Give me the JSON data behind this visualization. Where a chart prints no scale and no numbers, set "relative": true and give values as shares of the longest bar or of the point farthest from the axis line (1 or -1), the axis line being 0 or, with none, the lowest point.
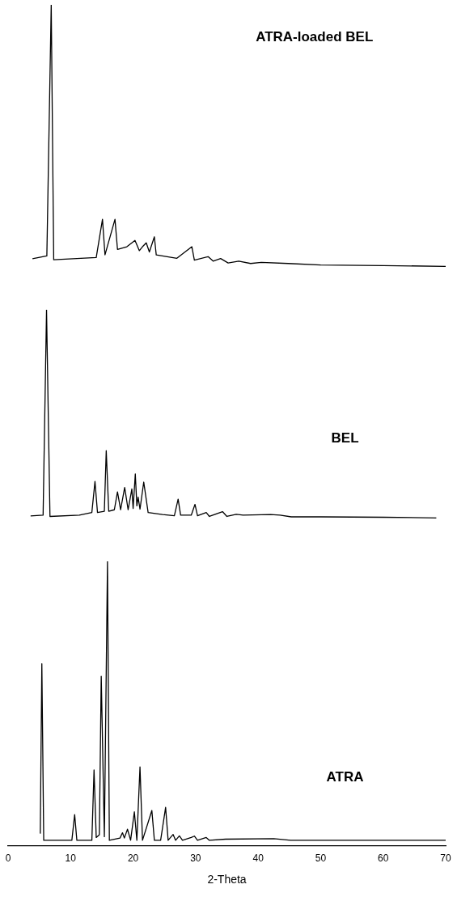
{
  "chart_data": [
    {
      "type": "line",
      "relative": true,
      "xlim": [
        0,
        70
      ],
      "tick_labels": false,
      "grid": false,
      "legend": false,
      "marker": "none",
      "line_style": "solid",
      "series": [
        {
          "name": "ATRA-loaded BEL",
          "color": "#000000",
          "x": [
            3.9,
            6.2,
            6.9,
            7.3,
            14.1,
            15.1,
            15.5,
            17.1,
            17.5,
            19.0,
            20.3,
            21.0,
            21.5,
            22.1,
            22.6,
            23.4,
            23.7,
            27.0,
            29.4,
            29.8,
            32.0,
            32.8,
            34.0,
            35.2,
            36.9,
            38.8,
            40.5,
            44.8,
            50,
            60,
            70
          ],
          "values": [
            0.029,
            0.04,
            1,
            0.025,
            0.034,
            0.18,
            0.044,
            0.18,
            0.065,
            0.075,
            0.099,
            0.06,
            0.075,
            0.09,
            0.055,
            0.113,
            0.044,
            0.031,
            0.075,
            0.024,
            0.037,
            0.02,
            0.03,
            0.013,
            0.02,
            0.011,
            0.015,
            0.011,
            0.005,
            0.003,
            0
          ]
        }
      ]
    },
    {
      "type": "line",
      "relative": true,
      "xlim": [
        0,
        70
      ],
      "tick_labels": false,
      "grid": false,
      "legend": false,
      "marker": "none",
      "line_style": "solid",
      "series": [
        {
          "name": "BEL",
          "color": "#000000",
          "x": [
            3.6,
            5.6,
            6.15,
            6.7,
            11.4,
            13.4,
            13.9,
            14.3,
            15.4,
            15.7,
            16.1,
            17.0,
            17.5,
            18.0,
            18.65,
            19.2,
            19.8,
            20.0,
            20.35,
            20.6,
            20.8,
            21.1,
            21.7,
            22.4,
            24.7,
            26.6,
            27.2,
            27.6,
            29.3,
            29.9,
            30.3,
            31.7,
            32.2,
            34.3,
            35.0,
            36.5,
            37.6,
            42.0,
            43.5,
            45.3,
            50,
            60,
            68.5
          ],
          "values": [
            0.009,
            0.013,
            1,
            0.007,
            0.013,
            0.026,
            0.175,
            0.026,
            0.032,
            0.323,
            0.032,
            0.039,
            0.125,
            0.039,
            0.146,
            0.039,
            0.139,
            0.045,
            0.211,
            0.058,
            0.1,
            0.042,
            0.172,
            0.026,
            0.016,
            0.01,
            0.09,
            0.013,
            0.013,
            0.065,
            0.01,
            0.026,
            0.007,
            0.03,
            0.007,
            0.017,
            0.013,
            0.016,
            0.013,
            0.005,
            0.005,
            0.003,
            0
          ]
        }
      ]
    },
    {
      "type": "line",
      "relative": true,
      "xlim": [
        0,
        70
      ],
      "xticks": [
        0,
        10,
        20,
        30,
        40,
        50,
        60,
        70
      ],
      "xlabel": "2-Theta",
      "tick_labels": "x",
      "grid": false,
      "legend": false,
      "marker": "none",
      "line_style": "solid",
      "series": [
        {
          "name": "ATRA",
          "color": "#000000",
          "x": [
            5.15,
            5.4,
            5.7,
            10.2,
            10.65,
            11.0,
            13.4,
            13.75,
            14.1,
            14.6,
            14.9,
            15.4,
            15.9,
            16.2,
            17.9,
            18.3,
            18.6,
            19.1,
            19.6,
            20.2,
            20.6,
            21.1,
            21.5,
            23.0,
            23.4,
            24.4,
            24.6,
            25.2,
            25.6,
            26.4,
            26.8,
            27.4,
            27.9,
            29.3,
            29.8,
            30.3,
            31.7,
            32.2,
            34.8,
            42.5,
            45.2,
            70
          ],
          "values": [
            0.024,
            0.633,
            0,
            0,
            0.092,
            0,
            0,
            0.252,
            0.01,
            0.02,
            0.588,
            0.013,
            1,
            0,
            0.008,
            0.027,
            0.008,
            0.04,
            0,
            0.102,
            0,
            0.263,
            0,
            0.107,
            0,
            0,
            0.029,
            0.118,
            0,
            0.021,
            0,
            0.016,
            0,
            0.01,
            0.015,
            0,
            0.01,
            0,
            0.004,
            0.006,
            0,
            0
          ]
        }
      ]
    }
  ]
}
